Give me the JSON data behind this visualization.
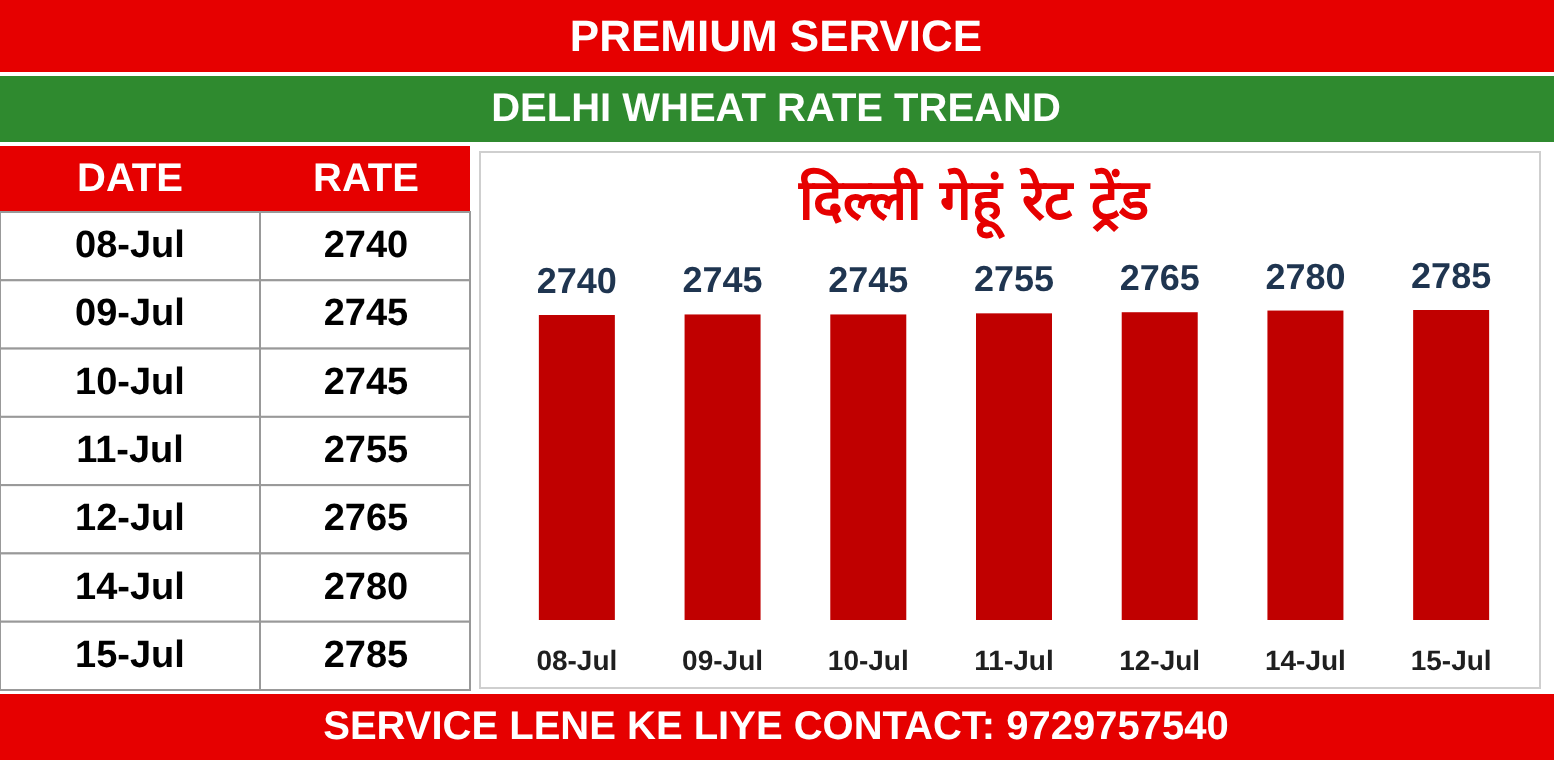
{
  "chart_data": [
    {
      "type": "bar",
      "title": "DELHI WHEAT RATE TREAND",
      "subtitle": "दिल्ली गेहूं रेट ट्रेंड",
      "annotations": [
        "PREMIUM SERVICE",
        "SERVICE LENE KE LIYE CONTACT: 9729757540"
      ],
      "categories": [
        "08-Jul",
        "09-Jul",
        "10-Jul",
        "11-Jul",
        "12-Jul",
        "14-Jul",
        "15-Jul"
      ],
      "values": [
        2740,
        2745,
        2745,
        2755,
        2765,
        2780,
        2785
      ],
      "color": "#c00000",
      "data_labels": true
    },
    {
      "type": "other",
      "annotations": [
        "DATE",
        "RATE"
      ],
      "categories": [
        "08-Jul",
        "09-Jul",
        "10-Jul",
        "11-Jul",
        "12-Jul",
        "14-Jul",
        "15-Jul"
      ],
      "values": [
        2740,
        2745,
        2745,
        2755,
        2765,
        2780,
        2785
      ],
      "data_labels": true
    }
  ]
}
